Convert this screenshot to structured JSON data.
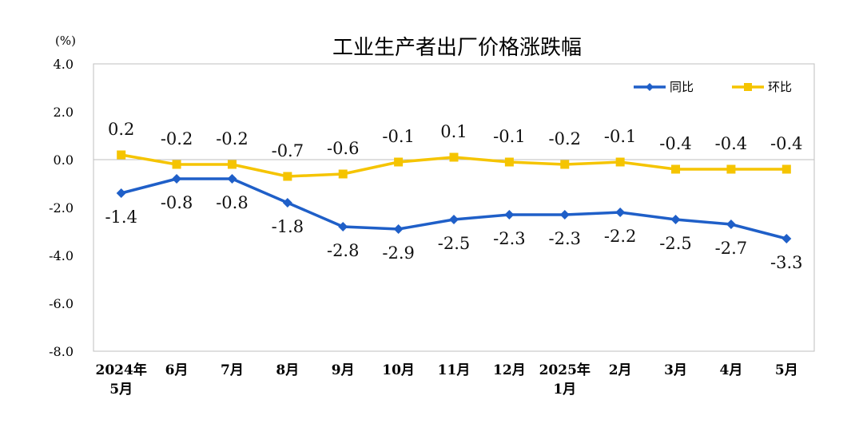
{
  "chart_data": {
    "type": "line",
    "title": "工业生产者出厂价格涨跌幅",
    "ylabel": "(%)",
    "ylim": [
      -8.0,
      4.0
    ],
    "yticks": [
      "4.0",
      "2.0",
      "0.0",
      "-2.0",
      "-4.0",
      "-6.0",
      "-8.0"
    ],
    "categories": [
      [
        "2024年",
        "5月"
      ],
      [
        "6月"
      ],
      [
        "7月"
      ],
      [
        "8月"
      ],
      [
        "9月"
      ],
      [
        "10月"
      ],
      [
        "11月"
      ],
      [
        "12月"
      ],
      [
        "2025年",
        "1月"
      ],
      [
        "2月"
      ],
      [
        "3月"
      ],
      [
        "4月"
      ],
      [
        "5月"
      ]
    ],
    "series": [
      {
        "name": "同比",
        "color": "#1F5FC8",
        "marker": "diamond",
        "values": [
          -1.4,
          -0.8,
          -0.8,
          -1.8,
          -2.8,
          -2.9,
          -2.5,
          -2.3,
          -2.3,
          -2.2,
          -2.5,
          -2.7,
          -3.3
        ],
        "labels": [
          "-1.4",
          "-0.8",
          "-0.8",
          "-1.8",
          "-2.8",
          "-2.9",
          "-2.5",
          "-2.3",
          "-2.3",
          "-2.2",
          "-2.5",
          "-2.7",
          "-3.3"
        ]
      },
      {
        "name": "环比",
        "color": "#F5C400",
        "marker": "square",
        "values": [
          0.2,
          -0.2,
          -0.2,
          -0.7,
          -0.6,
          -0.1,
          0.1,
          -0.1,
          -0.2,
          -0.1,
          -0.4,
          -0.4,
          -0.4
        ],
        "labels": [
          "0.2",
          "-0.2",
          "-0.2",
          "-0.7",
          "-0.6",
          "-0.1",
          "0.1",
          "-0.1",
          "-0.2",
          "-0.1",
          "-0.4",
          "-0.4",
          "-0.4"
        ]
      }
    ],
    "legend_position": "top-right",
    "grid": false
  }
}
